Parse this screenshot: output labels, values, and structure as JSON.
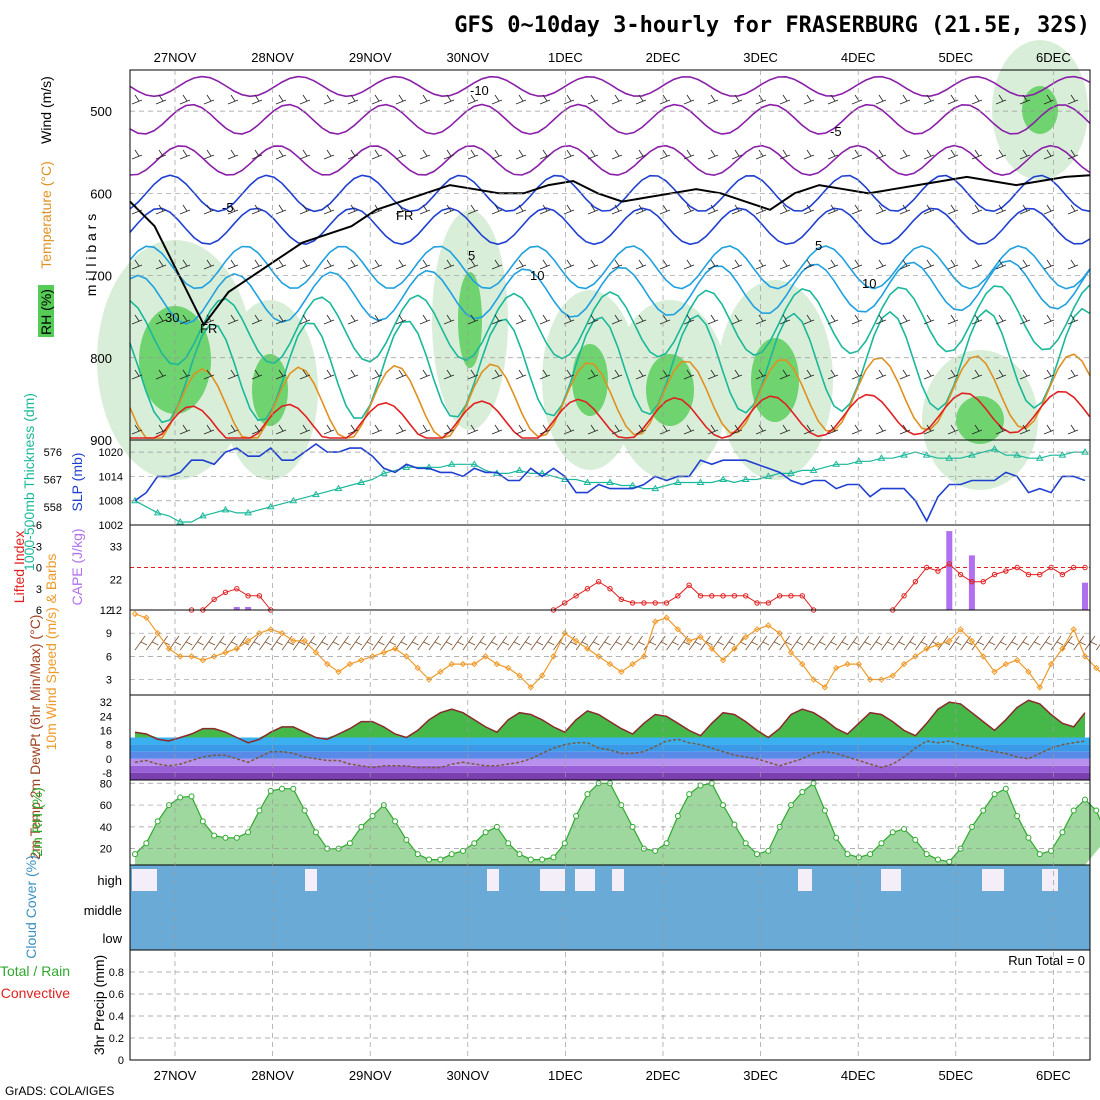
{
  "title": "GFS 0~10day 3-hourly for FRASERBURG (21.5E, 32S)",
  "credit": "GrADS: COLA/IGES",
  "colors": {
    "purple": "#8a1fa8",
    "blue": "#1f3fd0",
    "lightblue": "#1fa0e0",
    "teal": "#19b89a",
    "orange": "#e09020",
    "red": "#e02020",
    "green": "#55cc55",
    "lightgreen": "#d8eed8",
    "cloud": "#6aaad6",
    "cape": "#b070f0",
    "wind": "#f09a28",
    "rh2m": "#2ea82e"
  },
  "chart_data": [
    {
      "panel": "upper-air",
      "type": "heatmap",
      "title": "Wind (m/s) / Temperature (°C) / RH (%)",
      "x_ticks": [
        "27NOV",
        "28NOV",
        "29NOV",
        "30NOV",
        "1DEC",
        "2DEC",
        "3DEC",
        "4DEC",
        "5DEC",
        "6DEC"
      ],
      "ylabel": "m i l l i b a r s",
      "ylim": [
        900,
        450
      ],
      "yticks": [
        500,
        600,
        700,
        800,
        900
      ],
      "legend_labels": [
        "RH (%)",
        "Temperature (°C)",
        "Wind (m/s)"
      ],
      "contour_labels": [
        "-10",
        "-5",
        "-5",
        "5",
        "10",
        "5",
        "10",
        "FR",
        "FR",
        "30"
      ]
    },
    {
      "panel": "slp-thickness",
      "type": "line",
      "ylabel_left": "1000-500mb Thickness (dm)",
      "ylabel_right": "SLP (mb)",
      "yticks_left": [
        558,
        567,
        576
      ],
      "yticks_right": [
        1002,
        1008,
        1014,
        1020
      ],
      "series": [
        {
          "name": "SLP",
          "ylim": [
            1002,
            1023
          ],
          "values": [
            1008,
            1010,
            1014,
            1014,
            1015,
            1018,
            1018,
            1017,
            1020,
            1021,
            1019,
            1019,
            1021,
            1018,
            1018,
            1020,
            1022,
            1020,
            1020,
            1021,
            1021,
            1019,
            1016,
            1015,
            1017,
            1016,
            1016,
            1015,
            1015,
            1014,
            1016,
            1015,
            1015,
            1013,
            1013,
            1016,
            1014,
            1016,
            1014,
            1010,
            1010,
            1012,
            1011,
            1011,
            1011,
            1012,
            1014,
            1013,
            1014,
            1014,
            1018,
            1017,
            1018,
            1018,
            1018,
            1017,
            1016,
            1015,
            1013,
            1012,
            1013,
            1013,
            1011,
            1012,
            1012,
            1009,
            1011,
            1011,
            1011,
            1008,
            1003,
            1009,
            1012,
            1012,
            1013,
            1013,
            1013,
            1015,
            1014,
            1010,
            1011,
            1010,
            1014,
            1014,
            1013
          ]
        },
        {
          "name": "Thickness",
          "ylim": [
            552,
            580
          ],
          "values": [
            560,
            558,
            556,
            555,
            553,
            553,
            555,
            556,
            557,
            556,
            556,
            557,
            558,
            559,
            560,
            561,
            562,
            563,
            564,
            565,
            566,
            567,
            569,
            570,
            571,
            571,
            571,
            571,
            572,
            572,
            572,
            570,
            569,
            569,
            570,
            569,
            569,
            568,
            567,
            567,
            566,
            566,
            566,
            565,
            565,
            564,
            564,
            565,
            566,
            566,
            566,
            566,
            567,
            566,
            567,
            567,
            568,
            569,
            569,
            570,
            570,
            571,
            572,
            572,
            573,
            573,
            574,
            574,
            575,
            576,
            575,
            574,
            574,
            574,
            575,
            576,
            577,
            575,
            575,
            574,
            574,
            575,
            575,
            576,
            576
          ]
        }
      ]
    },
    {
      "panel": "instability",
      "type": "line",
      "ylabel_left": "Lifted Index",
      "ylabel_right": "CAPE (J/kg)",
      "yticks_left": [
        "6",
        "3",
        "0",
        "-3",
        "-6"
      ],
      "yticks_right": [
        12,
        22,
        33
      ],
      "series": [
        {
          "name": "Lifted Index",
          "ylim_inverted": [
            6,
            -6
          ],
          "values": [
            null,
            null,
            null,
            null,
            null,
            6,
            6,
            4.5,
            3.5,
            3,
            4,
            4,
            6,
            null,
            null,
            null,
            null,
            null,
            null,
            null,
            null,
            null,
            null,
            null,
            null,
            null,
            null,
            null,
            null,
            null,
            null,
            null,
            null,
            null,
            null,
            null,
            null,
            6,
            5,
            4,
            3,
            2,
            3,
            4.5,
            5,
            5,
            5,
            5,
            4,
            2.5,
            4,
            4,
            4,
            4,
            4,
            5,
            5,
            4,
            4,
            4,
            6,
            null,
            null,
            null,
            null,
            null,
            null,
            6,
            4,
            2,
            0,
            0.5,
            -0.5,
            1,
            2,
            2,
            1,
            0.5,
            0,
            1,
            1,
            0,
            1,
            0,
            0
          ]
        },
        {
          "name": "CAPE",
          "values": [
            0,
            0,
            0,
            0,
            0,
            0,
            0,
            0,
            0,
            13,
            13,
            0,
            0,
            0,
            0,
            0,
            0,
            0,
            0,
            0,
            0,
            0,
            0,
            0,
            0,
            0,
            0,
            0,
            0,
            0,
            0,
            0,
            0,
            0,
            0,
            0,
            0,
            0,
            0,
            0,
            0,
            0,
            0,
            0,
            0,
            0,
            0,
            0,
            0,
            0,
            0,
            0,
            0,
            0,
            0,
            0,
            0,
            0,
            0,
            0,
            0,
            0,
            0,
            0,
            0,
            0,
            0,
            0,
            0,
            0,
            0,
            0,
            38,
            0,
            30,
            0,
            0,
            0,
            0,
            0,
            0,
            0,
            0,
            0,
            21,
            0,
            0,
            0,
            14,
            0,
            0
          ]
        }
      ]
    },
    {
      "panel": "wind10m",
      "type": "line",
      "ylabel": "10m Wind Speed (m/s) & Barbs",
      "yticks": [
        3,
        6,
        9,
        12
      ],
      "ylim": [
        1,
        12
      ],
      "values": [
        11.5,
        11,
        9,
        7,
        6,
        6,
        5.5,
        6,
        6.5,
        7,
        8,
        9,
        9.5,
        9,
        8,
        8,
        6.5,
        5,
        4,
        5,
        5.5,
        6,
        6.5,
        7,
        6,
        4.5,
        3,
        4,
        5,
        5,
        5,
        6,
        5,
        4.5,
        3.5,
        2,
        3.5,
        6,
        9,
        8,
        7,
        6,
        5,
        4,
        5,
        6,
        10.5,
        11,
        9.5,
        8,
        8.5,
        7,
        5.5,
        7,
        8.5,
        9.5,
        10,
        9,
        6.5,
        5,
        3,
        2,
        4.5,
        5,
        5,
        3,
        3,
        3.5,
        5,
        6,
        7,
        7.5,
        8,
        9.5,
        8,
        6,
        4,
        5,
        5.5,
        4,
        2,
        5,
        7,
        9.5,
        6,
        4.5,
        3,
        3
      ]
    },
    {
      "panel": "temp2m",
      "type": "area",
      "ylabel": "2m Temp 2m DewPt (6hr Min/Max) (°C)",
      "yticks": [
        -8,
        0,
        8,
        16,
        24,
        32
      ],
      "ylim": [
        -12,
        36
      ],
      "series": [
        {
          "name": "2m Temp",
          "values": [
            15,
            14,
            11,
            10,
            12,
            14,
            17,
            17,
            15,
            12,
            9,
            11,
            15,
            18,
            18,
            15,
            12,
            11,
            14,
            17,
            21,
            21,
            18,
            14,
            12,
            16,
            22,
            26,
            28,
            26,
            22,
            18,
            15,
            22,
            26,
            25,
            22,
            18,
            15,
            22,
            27,
            25,
            21,
            17,
            14,
            20,
            25,
            24,
            20,
            16,
            13,
            20,
            26,
            25,
            21,
            16,
            12,
            17,
            25,
            28,
            26,
            22,
            17,
            14,
            20,
            26,
            25,
            21,
            16,
            13,
            20,
            28,
            32,
            31,
            26,
            21,
            16,
            22,
            29,
            33,
            31,
            25,
            20,
            18,
            26
          ]
        },
        {
          "name": "2m DewPt",
          "values": [
            -2,
            -1,
            -3,
            -4,
            -3,
            -1,
            1,
            2,
            2,
            0,
            -2,
            1,
            4,
            4,
            3,
            1,
            0,
            -1,
            -1,
            -3,
            -4,
            -5,
            -4,
            -4,
            -4,
            -5,
            -5,
            -5,
            -3,
            -2,
            -3,
            -4,
            -4,
            -3,
            -2,
            0,
            3,
            6,
            8,
            9,
            9,
            6,
            5,
            3,
            3,
            4,
            7,
            10,
            11,
            9,
            8,
            6,
            4,
            2,
            1,
            0,
            -2,
            -4,
            -2,
            0,
            3,
            4,
            3,
            1,
            -1,
            -3,
            -5,
            -3,
            1,
            6,
            10,
            9,
            10,
            8,
            7,
            5,
            4,
            3,
            1,
            0,
            3,
            6,
            8,
            9,
            10
          ]
        }
      ]
    },
    {
      "panel": "rh2m",
      "type": "area",
      "ylabel": "2m RH (%)",
      "yticks": [
        20,
        40,
        60,
        80
      ],
      "ylim": [
        5,
        83
      ],
      "values": [
        15,
        25,
        45,
        60,
        67,
        68,
        45,
        32,
        30,
        30,
        35,
        55,
        73,
        75,
        75,
        55,
        35,
        20,
        20,
        25,
        40,
        50,
        60,
        45,
        28,
        15,
        10,
        10,
        15,
        18,
        25,
        35,
        40,
        25,
        15,
        10,
        10,
        12,
        25,
        50,
        70,
        80,
        80,
        60,
        40,
        20,
        18,
        25,
        50,
        70,
        78,
        80,
        60,
        42,
        25,
        15,
        18,
        40,
        60,
        72,
        80,
        55,
        30,
        15,
        12,
        15,
        25,
        35,
        38,
        28,
        15,
        10,
        8,
        20,
        40,
        55,
        70,
        75,
        50,
        30,
        15,
        18,
        35,
        55,
        65,
        55,
        30
      ]
    },
    {
      "panel": "cloud-cover",
      "type": "bar",
      "ylabel": "Cloud Cover (%)",
      "levels": [
        "high",
        "middle",
        "low"
      ],
      "footprint": "blue background, white gaps"
    },
    {
      "panel": "precip",
      "type": "bar",
      "ylabel": "3hr Precip (mm)",
      "legend_labels": [
        "Total / Rain",
        "Convective"
      ],
      "yticks": [
        "0",
        "0.2",
        "0.4",
        "0.6",
        "0.8"
      ],
      "ylim": [
        0,
        1
      ],
      "annotation": "Run Total = 0",
      "values": []
    }
  ]
}
